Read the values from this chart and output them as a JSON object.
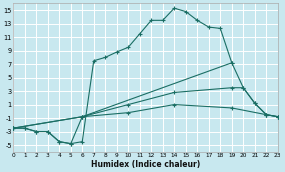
{
  "xlabel": "Humidex (Indice chaleur)",
  "bg_color": "#c8e8ef",
  "grid_color": "#ffffff",
  "line_color": "#1a6e64",
  "xlim": [
    0,
    23
  ],
  "ylim": [
    -6,
    16
  ],
  "yticks": [
    -5,
    -3,
    -1,
    1,
    3,
    5,
    7,
    9,
    11,
    13,
    15
  ],
  "xticks": [
    0,
    1,
    2,
    3,
    4,
    5,
    6,
    7,
    8,
    9,
    10,
    11,
    12,
    13,
    14,
    15,
    16,
    17,
    18,
    19,
    20,
    21,
    22,
    23
  ],
  "curve1_x": [
    0,
    1,
    2,
    3,
    4,
    5,
    6,
    7,
    8,
    9,
    10,
    11,
    12,
    13,
    14,
    15,
    16,
    17,
    18,
    19
  ],
  "curve1_y": [
    -2.5,
    -2.5,
    -3.0,
    -3.0,
    -4.5,
    -4.8,
    -4.5,
    7.5,
    8.0,
    8.8,
    9.5,
    11.5,
    13.5,
    13.5,
    15.3,
    14.8,
    13.5,
    12.5,
    12.3,
    7.2
  ],
  "curve2_x": [
    0,
    1,
    2,
    3,
    4,
    5,
    6,
    19,
    20,
    21,
    22,
    23
  ],
  "curve2_y": [
    -2.5,
    -2.5,
    -3.0,
    -3.0,
    -4.5,
    -4.8,
    -0.8,
    7.2,
    3.5,
    1.2,
    -0.5,
    -0.8
  ],
  "curve3_x": [
    0,
    6,
    10,
    14,
    19,
    20,
    21,
    22,
    23
  ],
  "curve3_y": [
    -2.5,
    -0.8,
    1.0,
    2.8,
    3.5,
    3.5,
    1.2,
    -0.5,
    -0.8
  ],
  "curve4_x": [
    0,
    6,
    10,
    14,
    19,
    22,
    23
  ],
  "curve4_y": [
    -2.5,
    -0.8,
    -0.2,
    1.0,
    0.5,
    -0.5,
    -0.8
  ]
}
